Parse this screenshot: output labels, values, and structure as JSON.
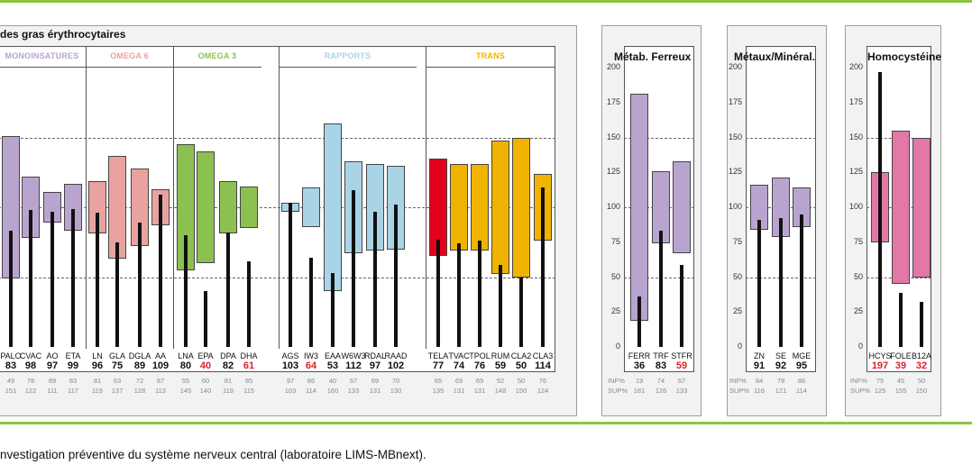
{
  "caption": "nvestigation préventive du système nerveux central (laboratoire LIMS-MBnext).",
  "row_labels": {
    "inf": "INF%",
    "sup": "SUP%"
  },
  "chart_data": [
    {
      "type": "bar",
      "title": "des gras érythrocytaires",
      "ylim": [
        0,
        200
      ],
      "yticks": [],
      "groups": [
        {
          "name": "MONOINSATURES",
          "color": "#b9a4cf"
        },
        {
          "name": "OMEGA 6",
          "color": "#e8a3a0"
        },
        {
          "name": "OMEGA 3",
          "color": "#8cc152"
        },
        {
          "name": "RAPPORTS",
          "color": "#a9d4e6"
        },
        {
          "name": "TRANS",
          "color": "#f0b400"
        }
      ],
      "items": [
        {
          "label": "PALO",
          "value": "83",
          "red": false,
          "inf": "49",
          "sup": "151",
          "low": 49,
          "high": 151,
          "color": "#b9a4cf"
        },
        {
          "label": "CVAC",
          "value": "98",
          "red": false,
          "inf": "78",
          "sup": "122",
          "low": 78,
          "high": 122,
          "color": "#b9a4cf"
        },
        {
          "label": "AO",
          "value": "97",
          "red": false,
          "inf": "89",
          "sup": "111",
          "low": 89,
          "high": 111,
          "color": "#b9a4cf"
        },
        {
          "label": "ETA",
          "value": "99",
          "red": false,
          "inf": "83",
          "sup": "117",
          "low": 83,
          "high": 117,
          "color": "#b9a4cf"
        },
        {
          "label": "LN",
          "value": "96",
          "red": false,
          "inf": "81",
          "sup": "119",
          "low": 81,
          "high": 119,
          "color": "#e8a3a0"
        },
        {
          "label": "GLA",
          "value": "75",
          "red": false,
          "inf": "63",
          "sup": "137",
          "low": 63,
          "high": 137,
          "color": "#e8a3a0"
        },
        {
          "label": "DGLA",
          "value": "89",
          "red": false,
          "inf": "72",
          "sup": "128",
          "low": 72,
          "high": 128,
          "color": "#e8a3a0"
        },
        {
          "label": "AA",
          "value": "109",
          "red": false,
          "inf": "87",
          "sup": "113",
          "low": 87,
          "high": 113,
          "color": "#e8a3a0"
        },
        {
          "label": "LNA",
          "value": "80",
          "red": false,
          "inf": "55",
          "sup": "145",
          "low": 55,
          "high": 145,
          "color": "#8cc152"
        },
        {
          "label": "EPA",
          "value": "40",
          "red": true,
          "inf": "60",
          "sup": "140",
          "low": 60,
          "high": 140,
          "color": "#8cc152"
        },
        {
          "label": "DPA",
          "value": "82",
          "red": false,
          "inf": "81",
          "sup": "119",
          "low": 81,
          "high": 119,
          "color": "#8cc152"
        },
        {
          "label": "DHA",
          "value": "61",
          "red": true,
          "inf": "85",
          "sup": "115",
          "low": 85,
          "high": 115,
          "color": "#8cc152"
        },
        {
          "label": "AGS",
          "value": "103",
          "red": false,
          "inf": "97",
          "sup": "103",
          "low": 97,
          "high": 103,
          "color": "#a9d4e6"
        },
        {
          "label": "IW3",
          "value": "64",
          "red": true,
          "inf": "86",
          "sup": "114",
          "low": 86,
          "high": 114,
          "color": "#a9d4e6"
        },
        {
          "label": "EAA",
          "value": "53",
          "red": false,
          "inf": "40",
          "sup": "160",
          "low": 40,
          "high": 160,
          "color": "#a9d4e6"
        },
        {
          "label": "W6W3",
          "value": "112",
          "red": false,
          "inf": "67",
          "sup": "133",
          "low": 67,
          "high": 133,
          "color": "#a9d4e6"
        },
        {
          "label": "RDAL",
          "value": "97",
          "red": false,
          "inf": "69",
          "sup": "131",
          "low": 69,
          "high": 131,
          "color": "#a9d4e6"
        },
        {
          "label": "RAAD",
          "value": "102",
          "red": false,
          "inf": "70",
          "sup": "130",
          "low": 70,
          "high": 130,
          "color": "#a9d4e6"
        },
        {
          "label": "TELA",
          "value": "77",
          "red": false,
          "inf": "65",
          "sup": "135",
          "low": 65,
          "high": 135,
          "color": "#e3001b"
        },
        {
          "label": "TVAC",
          "value": "74",
          "red": false,
          "inf": "69",
          "sup": "131",
          "low": 69,
          "high": 131,
          "color": "#f0b400"
        },
        {
          "label": "TPOL",
          "value": "76",
          "red": false,
          "inf": "69",
          "sup": "131",
          "low": 69,
          "high": 131,
          "color": "#f0b400"
        },
        {
          "label": "RUM",
          "value": "59",
          "red": false,
          "inf": "52",
          "sup": "148",
          "low": 52,
          "high": 148,
          "color": "#f0b400"
        },
        {
          "label": "CLA2",
          "value": "50",
          "red": false,
          "inf": "50",
          "sup": "150",
          "low": 50,
          "high": 150,
          "color": "#f0b400"
        },
        {
          "label": "CLA3",
          "value": "114",
          "red": false,
          "inf": "76",
          "sup": "124",
          "low": 76,
          "high": 124,
          "color": "#f0b400"
        }
      ]
    },
    {
      "type": "bar",
      "title": "Métab. Ferreux",
      "ylim": [
        0,
        200
      ],
      "yticks": [
        "0",
        "25",
        "50",
        "75",
        "100",
        "125",
        "150",
        "175",
        "200"
      ],
      "items": [
        {
          "label": "FERR",
          "value": "36",
          "red": false,
          "inf": "19",
          "sup": "181",
          "low": 19,
          "high": 181,
          "color": "#b9a4cf"
        },
        {
          "label": "TRF",
          "value": "83",
          "red": false,
          "inf": "74",
          "sup": "126",
          "low": 74,
          "high": 126,
          "color": "#b9a4cf"
        },
        {
          "label": "STFR",
          "value": "59",
          "red": true,
          "inf": "67",
          "sup": "133",
          "low": 67,
          "high": 133,
          "color": "#b9a4cf"
        }
      ]
    },
    {
      "type": "bar",
      "title": "Métaux/Minéral.",
      "ylim": [
        0,
        200
      ],
      "yticks": [
        "0",
        "25",
        "50",
        "75",
        "100",
        "125",
        "150",
        "175",
        "200"
      ],
      "items": [
        {
          "label": "ZN",
          "value": "91",
          "red": false,
          "inf": "84",
          "sup": "116",
          "low": 84,
          "high": 116,
          "color": "#b9a4cf"
        },
        {
          "label": "SE",
          "value": "92",
          "red": false,
          "inf": "79",
          "sup": "121",
          "low": 79,
          "high": 121,
          "color": "#b9a4cf"
        },
        {
          "label": "MGE",
          "value": "95",
          "red": false,
          "inf": "86",
          "sup": "114",
          "low": 86,
          "high": 114,
          "color": "#b9a4cf"
        }
      ]
    },
    {
      "type": "bar",
      "title": "Homocystéine",
      "ylim": [
        0,
        200
      ],
      "yticks": [
        "0",
        "25",
        "50",
        "75",
        "100",
        "125",
        "150",
        "175",
        "200"
      ],
      "items": [
        {
          "label": "HCYS",
          "value": "197",
          "red": true,
          "inf": "75",
          "sup": "125",
          "low": 75,
          "high": 125,
          "color": "#e377a8"
        },
        {
          "label": "FOLE",
          "value": "39",
          "red": true,
          "inf": "45",
          "sup": "155",
          "low": 45,
          "high": 155,
          "color": "#e377a8"
        },
        {
          "label": "B12A",
          "value": "32",
          "red": true,
          "inf": "50",
          "sup": "150",
          "low": 50,
          "high": 150,
          "color": "#e377a8"
        }
      ]
    }
  ]
}
